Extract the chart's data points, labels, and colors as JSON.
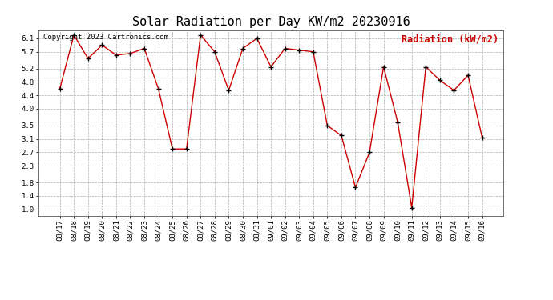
{
  "title": "Solar Radiation per Day KW/m2 20230916",
  "legend_label": "Radiation (kW/m2)",
  "copyright_text": "Copyright 2023 Cartronics.com",
  "dates": [
    "08/17",
    "08/18",
    "08/19",
    "08/20",
    "08/21",
    "08/22",
    "08/23",
    "08/24",
    "08/25",
    "08/26",
    "08/27",
    "08/28",
    "08/29",
    "08/30",
    "08/31",
    "09/01",
    "09/02",
    "09/03",
    "09/04",
    "09/05",
    "09/06",
    "09/07",
    "09/08",
    "09/09",
    "09/10",
    "09/11",
    "09/12",
    "09/13",
    "09/14",
    "09/15",
    "09/16"
  ],
  "values": [
    4.6,
    6.2,
    5.5,
    5.9,
    5.6,
    5.65,
    5.8,
    4.6,
    2.8,
    2.8,
    6.2,
    5.7,
    4.55,
    5.8,
    6.1,
    5.25,
    5.8,
    5.75,
    5.7,
    3.5,
    3.2,
    1.65,
    2.7,
    5.25,
    3.6,
    1.05,
    5.25,
    4.85,
    4.55,
    5.0,
    3.15
  ],
  "line_color": "#cc0000",
  "marker_color": "#000000",
  "bg_color": "#ffffff",
  "grid_color": "#999999",
  "title_color": "#000000",
  "legend_color": "#cc0000",
  "copyright_color": "#000000",
  "ylim": [
    0.8,
    6.35
  ],
  "yticks": [
    1.0,
    1.4,
    1.8,
    2.3,
    2.7,
    3.1,
    3.5,
    4.0,
    4.4,
    4.8,
    5.2,
    5.7,
    6.1
  ],
  "title_fontsize": 11,
  "tick_fontsize": 6.5,
  "legend_fontsize": 8.5,
  "copyright_fontsize": 6.5
}
